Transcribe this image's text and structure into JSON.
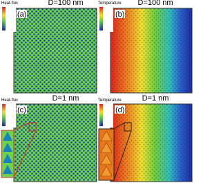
{
  "panels": [
    {
      "label": "(a)",
      "title": "D=100 nm",
      "legend_title": "Heat-flux"
    },
    {
      "label": "(b)",
      "title": "D=100 nm",
      "legend_title": "Temperature"
    },
    {
      "label": "(c)",
      "title": "D=1 nm",
      "legend_title": "Heat-flux"
    },
    {
      "label": "(d)",
      "title": "D=1 nm",
      "legend_title": "Temperature"
    }
  ]
}
